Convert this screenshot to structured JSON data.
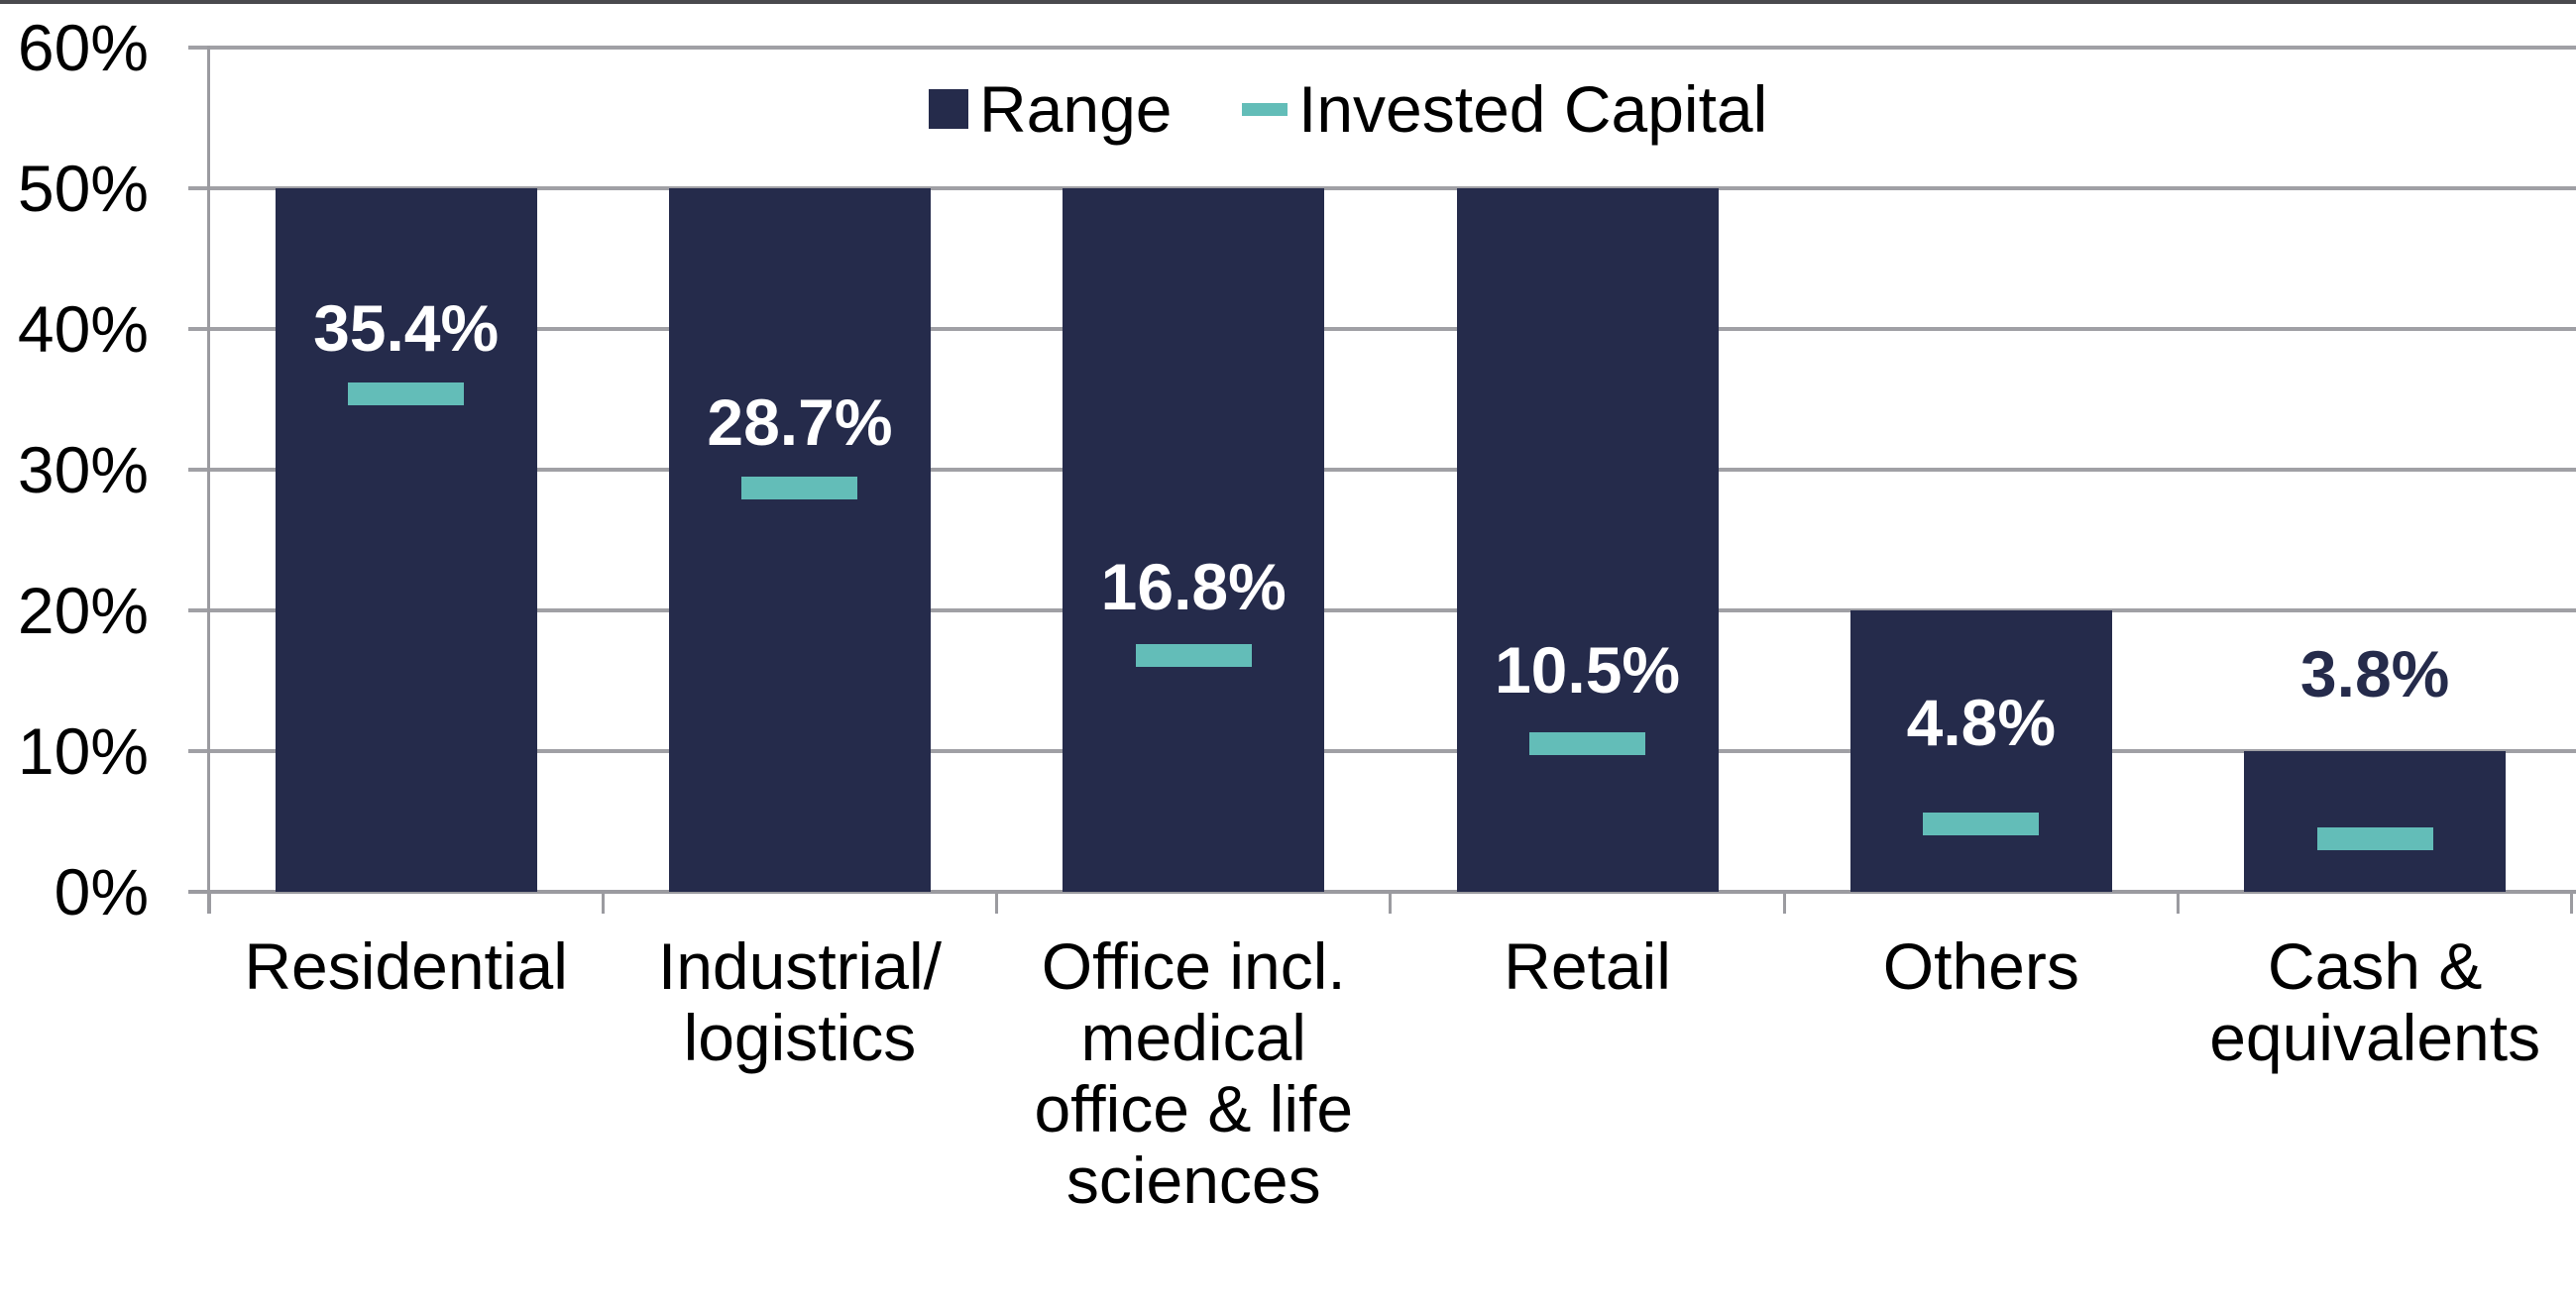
{
  "chart_data": {
    "type": "bar",
    "subtype": "column-range-with-markers",
    "title": "",
    "categories": [
      "Residential",
      "Industrial/\nlogistics",
      "Office incl.\nmedical\noffice & life\nsciences",
      "Retail",
      "Others",
      "Cash &\nequivalents"
    ],
    "series": [
      {
        "name": "Range",
        "type": "column-range",
        "color": "#252B4B",
        "low": [
          0,
          0,
          0,
          0,
          0,
          0
        ],
        "high": [
          50,
          50,
          50,
          50,
          20,
          10
        ]
      },
      {
        "name": "Invested Capital",
        "type": "dash-marker",
        "color": "#63BDB8",
        "values": [
          35.4,
          28.7,
          16.8,
          10.5,
          4.8,
          3.8
        ]
      }
    ],
    "value_labels": {
      "text": [
        "35.4%",
        "28.7%",
        "16.8%",
        "10.5%",
        "4.8%",
        "3.8%"
      ],
      "placement": [
        "inside",
        "inside",
        "inside",
        "inside",
        "inside",
        "above-bar"
      ],
      "inside_color": "#FFFFFF",
      "above_color": "#252B4B"
    },
    "y_axis": {
      "tick_labels": [
        "0%",
        "10%",
        "20%",
        "30%",
        "40%",
        "50%",
        "60%"
      ],
      "min": 0,
      "max": 60,
      "step": 10,
      "grid": true
    },
    "x_axis": {
      "boundary_ticks": true
    },
    "legend": {
      "position": "top-center",
      "entries": [
        "Range",
        "Invested Capital"
      ]
    },
    "colors": {
      "gridline": "#A0A0A5",
      "axis": "#9B9BA0",
      "top_border": "#4A4A4E",
      "text": "#000000",
      "background": "#FFFFFF"
    }
  }
}
